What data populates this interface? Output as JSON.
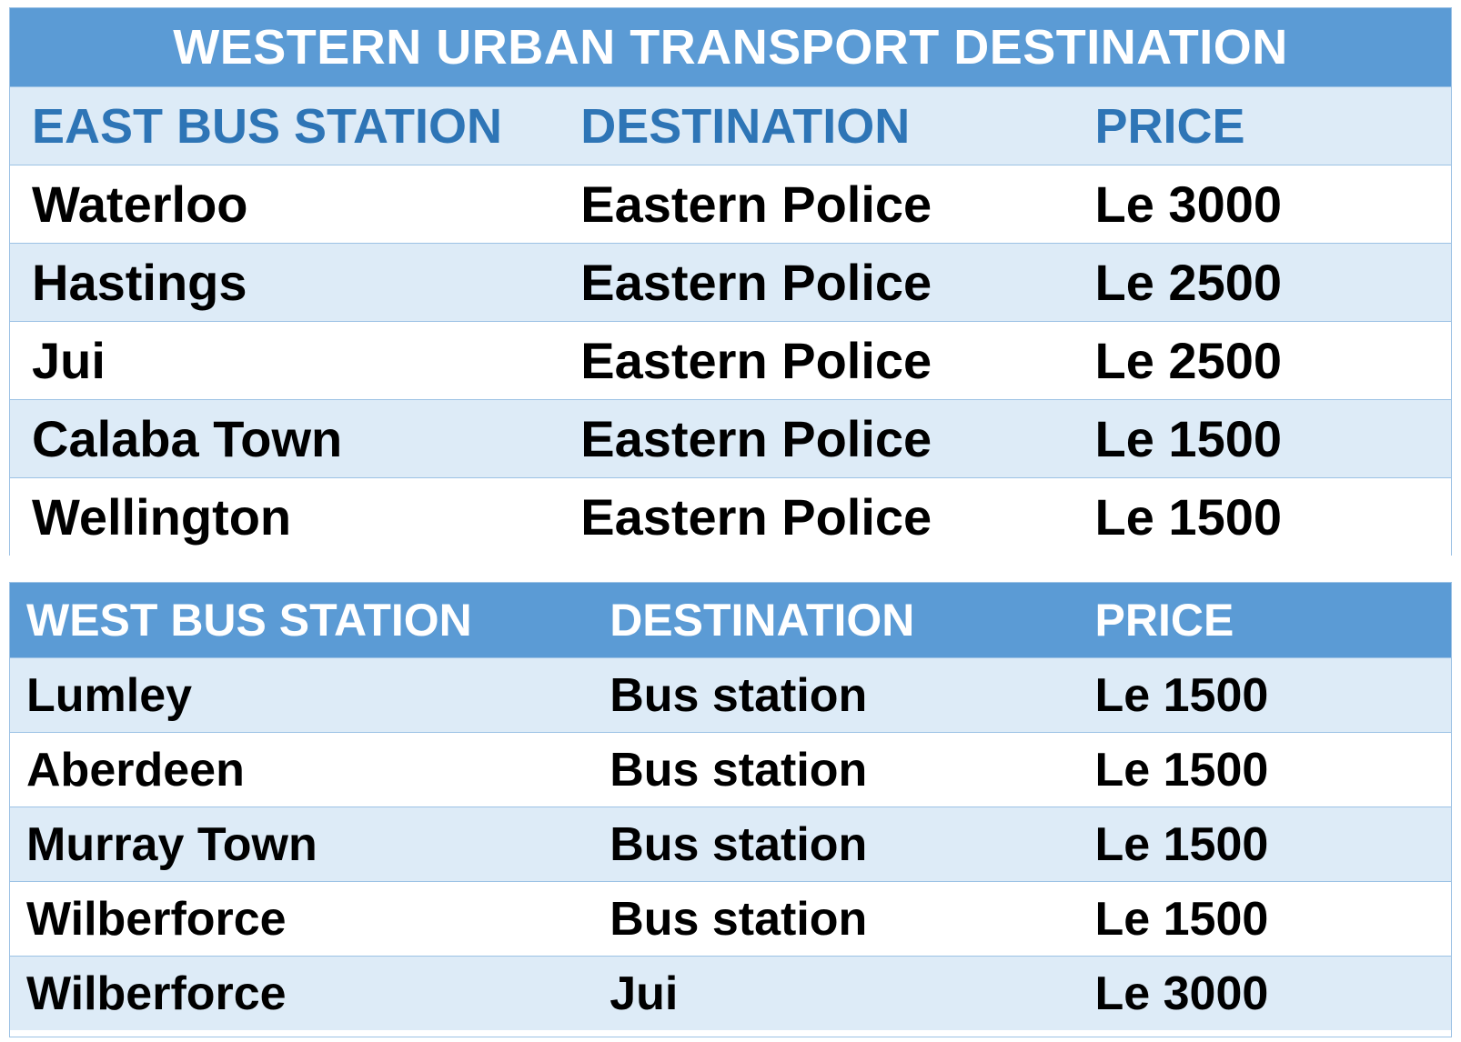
{
  "east": {
    "title": "WESTERN URBAN TRANSPORT DESTINATION",
    "headers": [
      "EAST BUS STATION",
      "DESTINATION",
      "PRICE"
    ],
    "rows": [
      [
        "Waterloo",
        "Eastern Police",
        "Le 3000"
      ],
      [
        "Hastings",
        "Eastern Police",
        "Le 2500"
      ],
      [
        "Jui",
        "Eastern Police",
        "Le 2500"
      ],
      [
        "Calaba Town",
        "Eastern Police",
        "Le 1500"
      ],
      [
        "Wellington",
        "Eastern Police",
        "Le 1500"
      ]
    ]
  },
  "west": {
    "headers": [
      "WEST BUS STATION",
      "DESTINATION",
      "PRICE"
    ],
    "rows": [
      [
        "Lumley",
        "Bus station",
        "Le 1500"
      ],
      [
        "Aberdeen",
        "Bus station",
        "Le 1500"
      ],
      [
        "Murray Town",
        "Bus station",
        "Le 1500"
      ],
      [
        "Wilberforce",
        "Bus station",
        "Le 1500"
      ],
      [
        "Wilberforce",
        "Jui",
        "Le 3000"
      ]
    ]
  },
  "colors": {
    "header_fill": "#5b9bd5",
    "band_fill": "#ddebf7",
    "header_text_blue": "#2e75b6",
    "border": "#9cc2e5"
  }
}
